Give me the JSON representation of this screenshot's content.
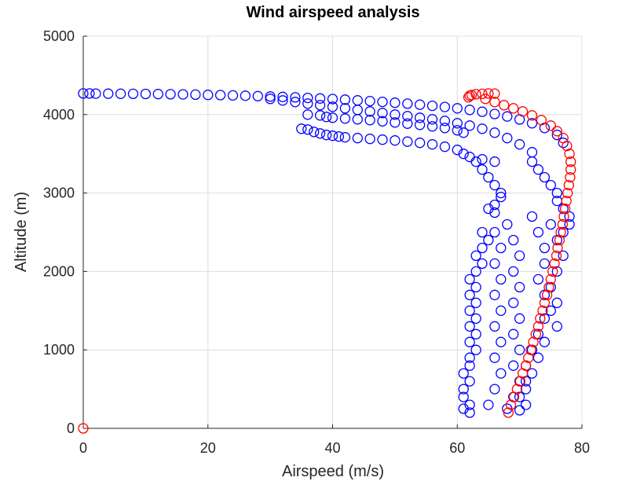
{
  "chart_data": {
    "type": "scatter",
    "title": "Wind airspeed analysis",
    "xlabel": "Airspeed (m/s)",
    "ylabel": "Altitude (m)",
    "xlim": [
      0,
      80
    ],
    "ylim": [
      0,
      5000
    ],
    "xticks": [
      "0",
      "20",
      "40",
      "60",
      "80"
    ],
    "yticks": [
      "0",
      "1000",
      "2000",
      "3000",
      "4000",
      "5000"
    ],
    "grid": true,
    "legend": "none",
    "marker": "open-circle",
    "series": [
      {
        "color": "#0000ff",
        "points": [
          [
            0,
            4270
          ],
          [
            1,
            4270
          ],
          [
            2,
            4268
          ],
          [
            4,
            4267
          ],
          [
            6,
            4266
          ],
          [
            8,
            4265
          ],
          [
            10,
            4264
          ],
          [
            12,
            4262
          ],
          [
            14,
            4260
          ],
          [
            16,
            4258
          ],
          [
            18,
            4255
          ],
          [
            20,
            4252
          ],
          [
            22,
            4248
          ],
          [
            24,
            4244
          ],
          [
            26,
            4240
          ],
          [
            28,
            4235
          ],
          [
            30,
            4230
          ],
          [
            32,
            4225
          ],
          [
            34,
            4219
          ],
          [
            36,
            4212
          ],
          [
            38,
            4205
          ],
          [
            40,
            4198
          ],
          [
            42,
            4190
          ],
          [
            44,
            4181
          ],
          [
            46,
            4172
          ],
          [
            48,
            4162
          ],
          [
            50,
            4151
          ],
          [
            52,
            4139
          ],
          [
            54,
            4126
          ],
          [
            56,
            4112
          ],
          [
            58,
            4097
          ],
          [
            60,
            4080
          ],
          [
            62,
            4060
          ],
          [
            64,
            4036
          ],
          [
            66,
            4008
          ],
          [
            68,
            3976
          ],
          [
            70,
            3938
          ],
          [
            72,
            3890
          ],
          [
            74,
            3830
          ],
          [
            76,
            3740
          ],
          [
            77,
            3640
          ],
          [
            30,
            4200
          ],
          [
            32,
            4180
          ],
          [
            34,
            4160
          ],
          [
            36,
            4140
          ],
          [
            38,
            4120
          ],
          [
            40,
            4100
          ],
          [
            42,
            4080
          ],
          [
            44,
            4060
          ],
          [
            46,
            4040
          ],
          [
            48,
            4020
          ],
          [
            50,
            4000
          ],
          [
            52,
            3980
          ],
          [
            54,
            3960
          ],
          [
            56,
            3940
          ],
          [
            58,
            3920
          ],
          [
            60,
            3890
          ],
          [
            62,
            3860
          ],
          [
            64,
            3820
          ],
          [
            66,
            3770
          ],
          [
            68,
            3700
          ],
          [
            70,
            3620
          ],
          [
            72,
            3520
          ],
          [
            36,
            4000
          ],
          [
            38,
            3990
          ],
          [
            39,
            3970
          ],
          [
            40,
            3960
          ],
          [
            42,
            3950
          ],
          [
            44,
            3940
          ],
          [
            46,
            3930
          ],
          [
            48,
            3915
          ],
          [
            50,
            3900
          ],
          [
            52,
            3885
          ],
          [
            54,
            3870
          ],
          [
            56,
            3850
          ],
          [
            58,
            3830
          ],
          [
            60,
            3800
          ],
          [
            61,
            3770
          ],
          [
            35,
            3820
          ],
          [
            36,
            3810
          ],
          [
            37,
            3780
          ],
          [
            38,
            3760
          ],
          [
            39,
            3740
          ],
          [
            40,
            3730
          ],
          [
            41,
            3720
          ],
          [
            42,
            3710
          ],
          [
            44,
            3700
          ],
          [
            46,
            3690
          ],
          [
            48,
            3680
          ],
          [
            50,
            3670
          ],
          [
            52,
            3655
          ],
          [
            54,
            3640
          ],
          [
            56,
            3620
          ],
          [
            58,
            3590
          ],
          [
            60,
            3550
          ],
          [
            61,
            3500
          ],
          [
            62,
            3460
          ],
          [
            64,
            3430
          ],
          [
            66,
            3400
          ],
          [
            63,
            3400
          ],
          [
            64,
            3300
          ],
          [
            65,
            3200
          ],
          [
            66,
            3100
          ],
          [
            67,
            3000
          ],
          [
            67,
            2950
          ],
          [
            66,
            2850
          ],
          [
            65,
            2800
          ],
          [
            66,
            2750
          ],
          [
            72,
            3400
          ],
          [
            73,
            3300
          ],
          [
            74,
            3200
          ],
          [
            75,
            3100
          ],
          [
            76,
            3000
          ],
          [
            76,
            2900
          ],
          [
            77,
            2800
          ],
          [
            78,
            2700
          ],
          [
            78,
            2600
          ],
          [
            77,
            2500
          ],
          [
            64,
            2500
          ],
          [
            65,
            2400
          ],
          [
            64,
            2300
          ],
          [
            63,
            2200
          ],
          [
            64,
            2100
          ],
          [
            63,
            2000
          ],
          [
            62,
            1900
          ],
          [
            63,
            1800
          ],
          [
            62,
            1700
          ],
          [
            63,
            1600
          ],
          [
            62,
            1500
          ],
          [
            63,
            1400
          ],
          [
            62,
            1300
          ],
          [
            63,
            1200
          ],
          [
            62,
            1100
          ],
          [
            63,
            1000
          ],
          [
            62,
            900
          ],
          [
            62,
            800
          ],
          [
            61,
            700
          ],
          [
            62,
            600
          ],
          [
            61,
            500
          ],
          [
            61,
            400
          ],
          [
            62,
            300
          ],
          [
            61,
            250
          ],
          [
            62,
            200
          ],
          [
            66,
            2500
          ],
          [
            67,
            2300
          ],
          [
            66,
            2100
          ],
          [
            67,
            1900
          ],
          [
            66,
            1700
          ],
          [
            67,
            1500
          ],
          [
            66,
            1300
          ],
          [
            67,
            1100
          ],
          [
            66,
            900
          ],
          [
            67,
            700
          ],
          [
            66,
            500
          ],
          [
            65,
            300
          ],
          [
            68,
            2600
          ],
          [
            69,
            2400
          ],
          [
            70,
            2200
          ],
          [
            69,
            2000
          ],
          [
            70,
            1800
          ],
          [
            69,
            1600
          ],
          [
            70,
            1400
          ],
          [
            69,
            1200
          ],
          [
            70,
            1000
          ],
          [
            69,
            800
          ],
          [
            70,
            600
          ],
          [
            69,
            400
          ],
          [
            68,
            250
          ],
          [
            72,
            2700
          ],
          [
            73,
            2500
          ],
          [
            74,
            2300
          ],
          [
            74,
            2100
          ],
          [
            73,
            1900
          ],
          [
            74,
            1700
          ],
          [
            75,
            1500
          ],
          [
            76,
            1300
          ],
          [
            74,
            1100
          ],
          [
            73,
            900
          ],
          [
            72,
            700
          ],
          [
            71,
            500
          ],
          [
            71,
            300
          ],
          [
            75,
            2600
          ],
          [
            76,
            2400
          ],
          [
            77,
            2200
          ],
          [
            76,
            2000
          ],
          [
            75,
            1800
          ],
          [
            76,
            1600
          ],
          [
            74,
            1400
          ],
          [
            73,
            1200
          ],
          [
            72,
            1000
          ],
          [
            71,
            800
          ],
          [
            71,
            600
          ],
          [
            70,
            400
          ],
          [
            70,
            230
          ]
        ]
      },
      {
        "color": "#ff0000",
        "points": [
          [
            0,
            0
          ],
          [
            61.8,
            4220
          ],
          [
            62,
            4240
          ],
          [
            62.3,
            4250
          ],
          [
            63,
            4260
          ],
          [
            64,
            4265
          ],
          [
            65,
            4270
          ],
          [
            66,
            4268
          ],
          [
            64.5,
            4200
          ],
          [
            66,
            4160
          ],
          [
            67.5,
            4120
          ],
          [
            69,
            4080
          ],
          [
            70.5,
            4040
          ],
          [
            72,
            3990
          ],
          [
            73.5,
            3930
          ],
          [
            75,
            3860
          ],
          [
            76,
            3790
          ],
          [
            77,
            3700
          ],
          [
            77.6,
            3600
          ],
          [
            78,
            3500
          ],
          [
            78.2,
            3400
          ],
          [
            78.2,
            3300
          ],
          [
            78.1,
            3200
          ],
          [
            77.9,
            3100
          ],
          [
            77.7,
            3000
          ],
          [
            77.5,
            2900
          ],
          [
            77.3,
            2800
          ],
          [
            77.1,
            2700
          ],
          [
            76.9,
            2600
          ],
          [
            76.6,
            2500
          ],
          [
            76.4,
            2400
          ],
          [
            76.1,
            2300
          ],
          [
            75.9,
            2200
          ],
          [
            75.6,
            2100
          ],
          [
            75.3,
            2000
          ],
          [
            75,
            1900
          ],
          [
            74.7,
            1800
          ],
          [
            74.4,
            1700
          ],
          [
            74,
            1600
          ],
          [
            73.7,
            1500
          ],
          [
            73.3,
            1400
          ],
          [
            73,
            1300
          ],
          [
            72.6,
            1200
          ],
          [
            72.2,
            1100
          ],
          [
            71.8,
            1000
          ],
          [
            71.4,
            900
          ],
          [
            71,
            800
          ],
          [
            70.5,
            700
          ],
          [
            70.1,
            600
          ],
          [
            69.6,
            500
          ],
          [
            69.1,
            400
          ],
          [
            68.6,
            300
          ],
          [
            68.2,
            200
          ]
        ]
      }
    ]
  }
}
